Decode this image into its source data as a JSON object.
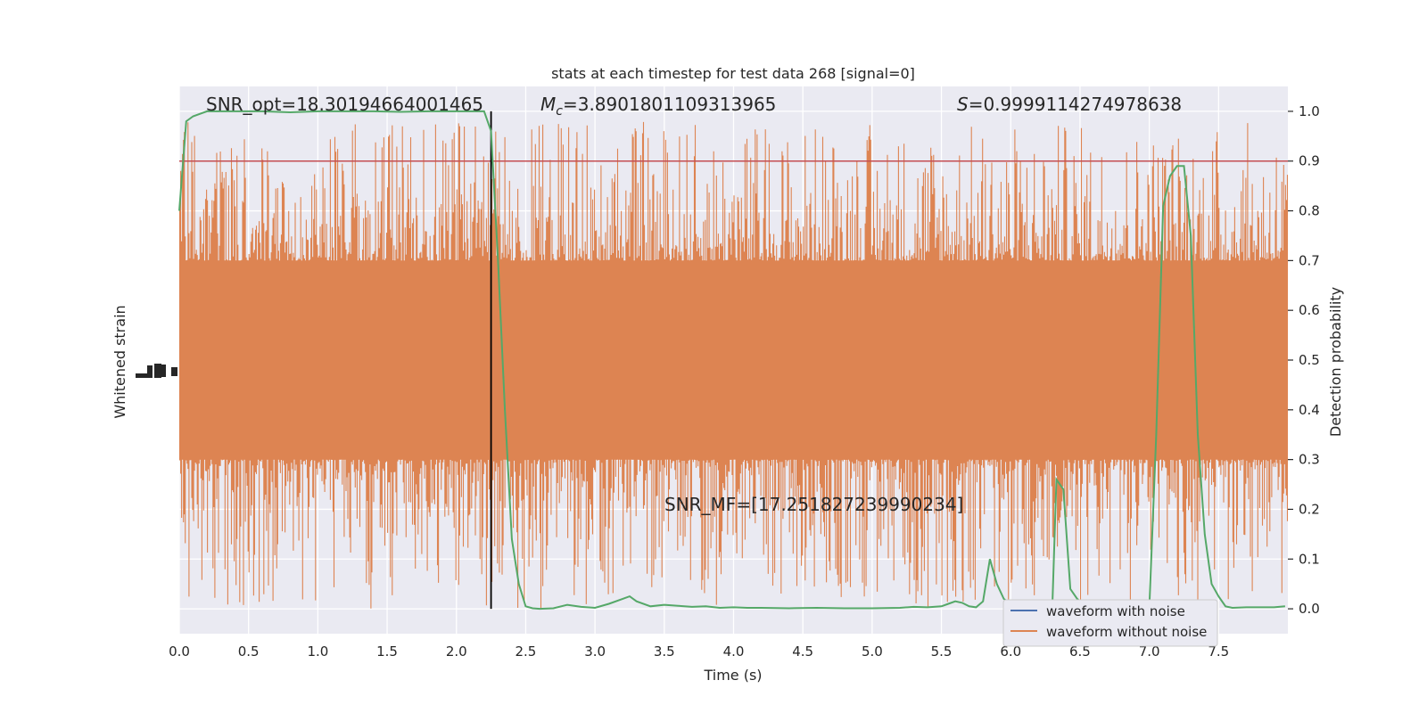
{
  "chart_data": {
    "type": "line",
    "title": "stats at each timestep for test data 268 [signal=0]",
    "xlabel": "Time (s)",
    "ylabel_left": "Whitened strain",
    "ylabel_right": "Detection probability",
    "xlim": [
      0.0,
      8.0
    ],
    "ylim_right": [
      -0.05,
      1.05
    ],
    "x_ticks": [
      0.0,
      0.5,
      1.0,
      1.5,
      2.0,
      2.5,
      3.0,
      3.5,
      4.0,
      4.5,
      5.0,
      5.5,
      6.0,
      6.5,
      7.0,
      7.5
    ],
    "x_tick_labels": [
      "0.0",
      "0.5",
      "1.0",
      "1.5",
      "2.0",
      "2.5",
      "3.0",
      "3.5",
      "4.0",
      "4.5",
      "5.0",
      "5.5",
      "6.0",
      "6.5",
      "7.0",
      "7.5"
    ],
    "y_ticks_right": [
      0.0,
      0.1,
      0.2,
      0.3,
      0.4,
      0.5,
      0.6,
      0.7,
      0.8,
      0.9,
      1.0
    ],
    "y_tick_labels_right": [
      "0.0",
      "0.1",
      "0.2",
      "0.3",
      "0.4",
      "0.5",
      "0.6",
      "0.7",
      "0.8",
      "0.9",
      "1.0"
    ],
    "grid": true,
    "legend_placement": "lower-right",
    "annotations": {
      "snr_opt": "SNR_opt=18.30194664001465",
      "mc_symbol": "M",
      "mc_sub": "c",
      "mc_value": "=3.8901801109313965",
      "s_symbol": "S",
      "s_value": "=0.9999114274978638",
      "snr_mf": "SNR_MF=[17.251827239990234]"
    },
    "threshold": {
      "value": 0.9,
      "color": "#c44e52"
    },
    "event_time": 2.25,
    "strain": {
      "noise_band_low": 0.3,
      "noise_band_high": 0.7,
      "spike_extreme_low": 0.0,
      "spike_extreme_high": 1.0,
      "color": "#dd8452"
    },
    "legend": [
      {
        "name": "waveform with noise",
        "color": "#4c72b0"
      },
      {
        "name": "waveform without noise",
        "color": "#dd8452"
      }
    ],
    "series": [
      {
        "name": "detection probability",
        "color": "#55a868",
        "x": [
          0.0,
          0.05,
          0.1,
          0.2,
          0.4,
          0.6,
          0.8,
          1.0,
          1.2,
          1.4,
          1.6,
          1.8,
          2.0,
          2.1,
          2.2,
          2.25,
          2.3,
          2.35,
          2.4,
          2.45,
          2.5,
          2.55,
          2.6,
          2.7,
          2.8,
          2.9,
          3.0,
          3.1,
          3.2,
          3.25,
          3.3,
          3.4,
          3.5,
          3.6,
          3.7,
          3.8,
          3.9,
          4.0,
          4.1,
          4.2,
          4.4,
          4.6,
          4.8,
          5.0,
          5.2,
          5.3,
          5.4,
          5.5,
          5.55,
          5.6,
          5.65,
          5.7,
          5.75,
          5.8,
          5.85,
          5.9,
          5.95,
          6.0,
          6.05,
          6.1,
          6.15,
          6.2,
          6.25,
          6.3,
          6.33,
          6.38,
          6.43,
          6.48,
          6.52,
          6.6,
          6.7,
          6.8,
          6.9,
          6.95,
          7.0,
          7.05,
          7.1,
          7.15,
          7.2,
          7.25,
          7.3,
          7.35,
          7.4,
          7.45,
          7.5,
          7.55,
          7.6,
          7.7,
          7.8,
          7.9,
          7.98
        ],
        "values": [
          0.8,
          0.98,
          0.99,
          1.0,
          1.0,
          1.0,
          0.998,
          1.0,
          1.0,
          1.0,
          0.999,
          1.0,
          1.0,
          1.0,
          1.0,
          0.96,
          0.7,
          0.4,
          0.14,
          0.05,
          0.005,
          0.001,
          0.0,
          0.001,
          0.008,
          0.004,
          0.002,
          0.01,
          0.02,
          0.025,
          0.015,
          0.005,
          0.008,
          0.006,
          0.004,
          0.005,
          0.002,
          0.003,
          0.002,
          0.002,
          0.001,
          0.002,
          0.001,
          0.001,
          0.002,
          0.004,
          0.003,
          0.005,
          0.01,
          0.015,
          0.012,
          0.005,
          0.003,
          0.015,
          0.1,
          0.05,
          0.02,
          0.01,
          0.012,
          0.016,
          0.01,
          0.003,
          0.002,
          0.004,
          0.26,
          0.24,
          0.04,
          0.02,
          0.01,
          0.005,
          0.003,
          0.002,
          0.002,
          0.0,
          0.0,
          0.35,
          0.81,
          0.87,
          0.89,
          0.89,
          0.75,
          0.35,
          0.15,
          0.05,
          0.025,
          0.005,
          0.002,
          0.003,
          0.003,
          0.003,
          0.005
        ]
      }
    ]
  }
}
